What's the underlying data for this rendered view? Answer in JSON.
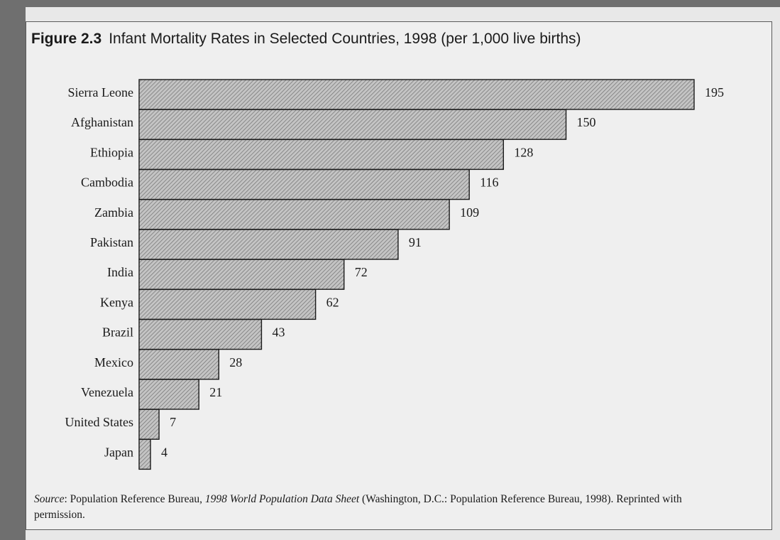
{
  "figure": {
    "number": "Figure 2.3",
    "title": "Infant Mortality Rates in Selected Countries, 1998 (per 1,000 live births)"
  },
  "source": {
    "prefix": "Source",
    "after_prefix": ": Population Reference Bureau, ",
    "publication": "1998 World Population Data Sheet",
    "rest": " (Washington, D.C.: Population Reference Bureau, 1998). Reprinted with permission."
  },
  "chart_data": {
    "type": "bar",
    "orientation": "horizontal",
    "title": "Infant Mortality Rates in Selected Countries, 1998 (per 1,000 live births)",
    "categories": [
      "Sierra Leone",
      "Afghanistan",
      "Ethiopia",
      "Cambodia",
      "Zambia",
      "Pakistan",
      "India",
      "Kenya",
      "Brazil",
      "Mexico",
      "Venezuela",
      "United States",
      "Japan"
    ],
    "values": [
      195,
      150,
      128,
      116,
      109,
      91,
      72,
      62,
      43,
      28,
      21,
      7,
      4
    ],
    "data_labels": [
      "195",
      "150",
      "128",
      "116",
      "109",
      "91",
      "72",
      "62",
      "43",
      "28",
      "21",
      "7",
      "4"
    ],
    "xlim": [
      0,
      195
    ],
    "grid": false,
    "legend": "none",
    "bar_fill": "hatched",
    "colors": {
      "bar_stroke": "#1a1a1a",
      "hatch": "#7a7a7a",
      "bar_bg": "#c4c4c4"
    }
  }
}
